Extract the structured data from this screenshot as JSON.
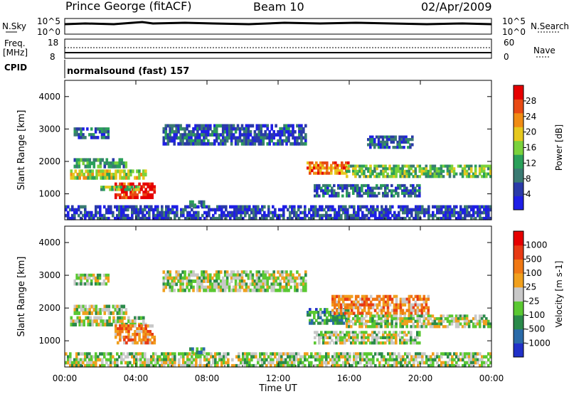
{
  "header": {
    "station": "Prince George (fitACF)",
    "beam": "Beam 10",
    "date": "02/Apr/2009"
  },
  "sky_panel": {
    "label": "N.Sky",
    "right_label": "N.Search",
    "y_ticks_left": [
      "10^5",
      "10^0"
    ],
    "y_ticks_right": [
      "10^5",
      "10^0"
    ]
  },
  "freq_panel": {
    "label_line1": "Freq.",
    "label_line2": "[MHz]",
    "right_label": "Nave",
    "y_ticks_left": [
      "18",
      "8"
    ],
    "y_ticks_right": [
      "60",
      "0"
    ]
  },
  "cpid": {
    "label": "CPID",
    "value": "normalsound (fast) 157"
  },
  "chart_data": [
    {
      "type": "heatmap",
      "name": "power",
      "ylabel": "Slant Range [km]",
      "y_ticks": [
        "4000",
        "3000",
        "2000",
        "1000"
      ],
      "ylim": [
        200,
        4500
      ],
      "xlim_hours": [
        0,
        24
      ],
      "x_ticks": [
        "00:00",
        "04:00",
        "08:00",
        "12:00",
        "16:00",
        "20:00",
        "00:00"
      ],
      "colorbar": {
        "label": "Power [dB]",
        "ticks": [
          "28",
          "24",
          "20",
          "16",
          "12",
          "8",
          "4"
        ],
        "colors": [
          "#1e1ee6",
          "#2a3aa8",
          "#3a7a72",
          "#2aa05a",
          "#7ad23c",
          "#e6c81e",
          "#f08c14",
          "#e84a14",
          "#e60000"
        ]
      },
      "bands": [
        {
          "x": [
            0.3,
            4.6
          ],
          "y": [
            1450,
            1750
          ],
          "level": 0.55
        },
        {
          "x": [
            0.5,
            3.5
          ],
          "y": [
            1800,
            2100
          ],
          "level": 0.35
        },
        {
          "x": [
            0.5,
            2.5
          ],
          "y": [
            2700,
            3050
          ],
          "level": 0.25
        },
        {
          "x": [
            2.8,
            5.1
          ],
          "y": [
            850,
            1350
          ],
          "level": 0.92
        },
        {
          "x": [
            2.0,
            4.2
          ],
          "y": [
            1100,
            1250
          ],
          "level": 0.45
        },
        {
          "x": [
            0.0,
            24.0
          ],
          "y": [
            200,
            650
          ],
          "level": 0.15
        },
        {
          "x": [
            5.5,
            13.6
          ],
          "y": [
            2500,
            3150
          ],
          "level": 0.2
        },
        {
          "x": [
            13.6,
            16.0
          ],
          "y": [
            1600,
            2000
          ],
          "level": 0.75
        },
        {
          "x": [
            15.8,
            24.0
          ],
          "y": [
            1500,
            1900
          ],
          "level": 0.45
        },
        {
          "x": [
            14.0,
            20.0
          ],
          "y": [
            900,
            1300
          ],
          "level": 0.25
        },
        {
          "x": [
            17.0,
            19.6
          ],
          "y": [
            2400,
            2800
          ],
          "level": 0.2
        },
        {
          "x": [
            7.0,
            8.0
          ],
          "y": [
            600,
            800
          ],
          "level": 0.3
        }
      ]
    },
    {
      "type": "heatmap",
      "name": "velocity",
      "ylabel": "Slant Range [km]",
      "y_ticks": [
        "4000",
        "3000",
        "2000",
        "1000"
      ],
      "ylim": [
        200,
        4500
      ],
      "xlim_hours": [
        0,
        24
      ],
      "x_ticks": [
        "00:00",
        "04:00",
        "08:00",
        "12:00",
        "16:00",
        "20:00",
        "00:00"
      ],
      "xlabel": "Time UT",
      "colorbar": {
        "label": "Velocity [m s-1]",
        "ticks": [
          "1000",
          "500",
          "100",
          "25",
          "-25",
          "-100",
          "-500",
          "-1000"
        ],
        "colors": [
          "#2030c8",
          "#2a6aa8",
          "#2a8a4a",
          "#5ac832",
          "#c8c8c8",
          "#f0a01e",
          "#f07814",
          "#e83a14",
          "#e60000"
        ]
      },
      "bands": [
        {
          "x": [
            0.3,
            4.6
          ],
          "y": [
            1450,
            1750
          ],
          "level": 0.45
        },
        {
          "x": [
            0.5,
            3.5
          ],
          "y": [
            1800,
            2100
          ],
          "level": 0.45
        },
        {
          "x": [
            0.5,
            2.5
          ],
          "y": [
            2700,
            3050
          ],
          "level": 0.45
        },
        {
          "x": [
            2.8,
            5.1
          ],
          "y": [
            900,
            1500
          ],
          "level": 0.7
        },
        {
          "x": [
            0.0,
            24.0
          ],
          "y": [
            200,
            650
          ],
          "level": 0.45
        },
        {
          "x": [
            5.5,
            13.6
          ],
          "y": [
            2500,
            3150
          ],
          "level": 0.45
        },
        {
          "x": [
            13.6,
            16.0
          ],
          "y": [
            1500,
            2000
          ],
          "level": 0.28
        },
        {
          "x": [
            15.0,
            20.5
          ],
          "y": [
            1800,
            2400
          ],
          "level": 0.68
        },
        {
          "x": [
            15.8,
            24.0
          ],
          "y": [
            1400,
            1800
          ],
          "level": 0.45
        },
        {
          "x": [
            14.0,
            20.0
          ],
          "y": [
            900,
            1300
          ],
          "level": 0.45
        },
        {
          "x": [
            7.0,
            8.0
          ],
          "y": [
            600,
            800
          ],
          "level": 0.3
        }
      ]
    }
  ]
}
